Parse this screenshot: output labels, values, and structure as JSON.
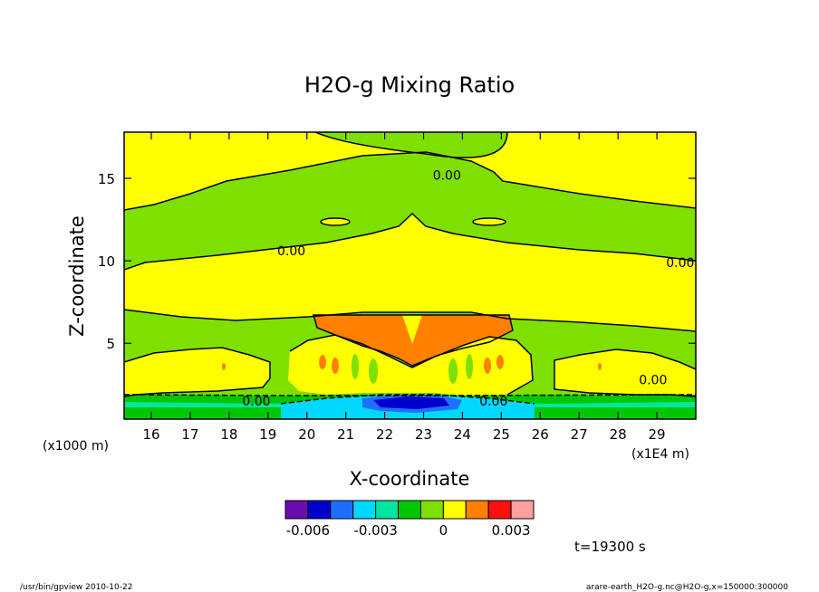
{
  "chart_data": {
    "type": "heatmap",
    "title": "H2O-g Mixing Ratio",
    "xlabel": "X-coordinate",
    "ylabel": "Z-coordinate",
    "x_unit_left": "(x1000 m)",
    "x_unit_right": "(x1E4 m)",
    "xlim": [
      15.3,
      30.0
    ],
    "ylim": [
      0.4,
      17.8
    ],
    "x_ticks": [
      "16",
      "17",
      "18",
      "19",
      "20",
      "21",
      "22",
      "23",
      "24",
      "25",
      "26",
      "27",
      "28",
      "29"
    ],
    "x_tick_values": [
      16,
      17,
      18,
      19,
      20,
      21,
      22,
      23,
      24,
      25,
      26,
      27,
      28,
      29
    ],
    "y_ticks": [
      "5",
      "10",
      "15"
    ],
    "y_tick_values": [
      5,
      10,
      15
    ],
    "contour_labels": [
      {
        "text": "0.00",
        "x": 23.6,
        "z": 15.2
      },
      {
        "text": "0.00",
        "x": 19.6,
        "z": 10.6
      },
      {
        "text": "0.00",
        "x": 29.6,
        "z": 9.9
      },
      {
        "text": "0.00",
        "x": 18.7,
        "z": 1.5
      },
      {
        "text": "0.00",
        "x": 24.8,
        "z": 1.5
      },
      {
        "text": "0.00",
        "x": 28.9,
        "z": 2.8
      }
    ],
    "colorbar": {
      "colors": [
        "#6a0dad",
        "#0000cd",
        "#1e6fff",
        "#00d8ff",
        "#00e6a0",
        "#00c800",
        "#7fe000",
        "#ffff00",
        "#ff7f00",
        "#ff1010",
        "#ffa0a0"
      ],
      "tick_labels": [
        "-0.006",
        "-0.003",
        "0",
        "0.003"
      ]
    },
    "time_label": "t=19300 s",
    "footer_left": "/usr/bin/gpview  2010-10-22",
    "footer_right": "arare-earth_H2O-g.nc@H2O-g,x=150000:300000",
    "fill_colors": {
      "background": "#7fe000",
      "band": "#ffff00",
      "high": "#ff7f00",
      "hot": "#ff1010",
      "low": "#00c800",
      "lower": "#00e6a0",
      "lowest": "#00d8ff",
      "min": "#0000cd",
      "min2": "#1e6fff"
    }
  }
}
